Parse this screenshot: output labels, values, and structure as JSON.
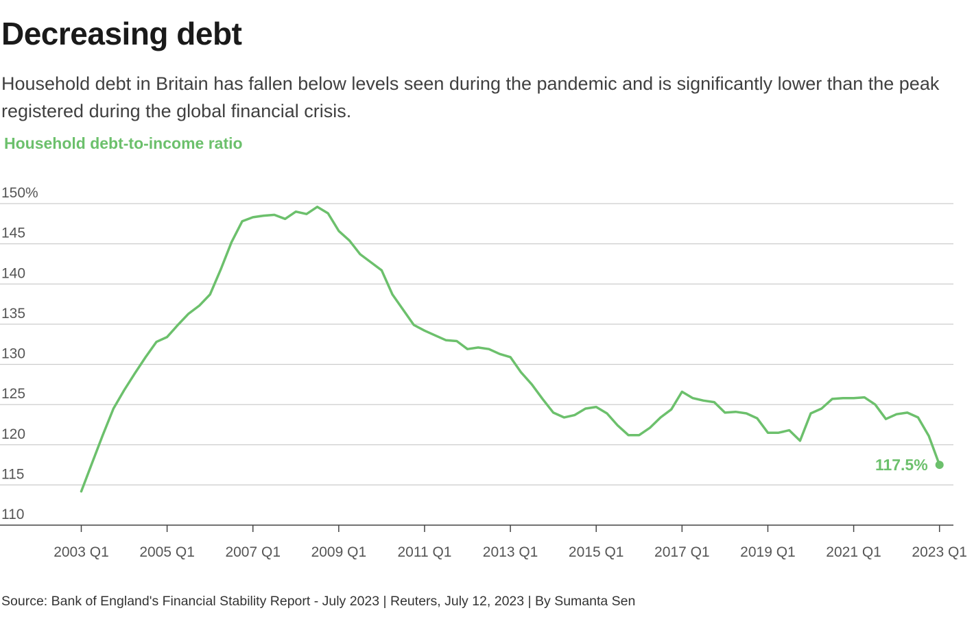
{
  "header": {
    "title": "Decreasing debt",
    "subtitle": "Household debt in Britain has fallen below levels seen during the pandemic and is significantly lower than the peak registered during the global financial crisis."
  },
  "chart_label": "Household debt-to-income ratio",
  "footer": {
    "source": "Source: Bank of England's Financial Stability Report - July 2023 | Reuters, July 12, 2023 | By Sumanta Sen"
  },
  "colors": {
    "line": "#6cc06c",
    "grid": "#cccccc",
    "axis": "#444444"
  },
  "chart_data": {
    "type": "line",
    "title": "Household debt-to-income ratio",
    "xlabel": "",
    "ylabel": "",
    "ylim": [
      110,
      150
    ],
    "y_ticks": [
      {
        "value": 150,
        "label": "150%"
      },
      {
        "value": 145,
        "label": "145"
      },
      {
        "value": 140,
        "label": "140"
      },
      {
        "value": 135,
        "label": "135"
      },
      {
        "value": 130,
        "label": "130"
      },
      {
        "value": 125,
        "label": "125"
      },
      {
        "value": 120,
        "label": "120"
      },
      {
        "value": 115,
        "label": "115"
      },
      {
        "value": 110,
        "label": "110"
      }
    ],
    "x_ticks": [
      {
        "index": 0,
        "label": "2003 Q1"
      },
      {
        "index": 8,
        "label": "2005 Q1"
      },
      {
        "index": 16,
        "label": "2007 Q1"
      },
      {
        "index": 24,
        "label": "2009 Q1"
      },
      {
        "index": 32,
        "label": "2011 Q1"
      },
      {
        "index": 40,
        "label": "2013 Q1"
      },
      {
        "index": 48,
        "label": "2015 Q1"
      },
      {
        "index": 56,
        "label": "2017 Q1"
      },
      {
        "index": 64,
        "label": "2019 Q1"
      },
      {
        "index": 72,
        "label": "2021 Q1"
      },
      {
        "index": 80,
        "label": "2023 Q1"
      }
    ],
    "grid": true,
    "series": [
      {
        "name": "Household debt-to-income ratio",
        "start": "2003 Q1",
        "values": [
          114.2,
          117.7,
          121.2,
          124.5,
          126.8,
          128.9,
          130.9,
          132.8,
          133.4,
          134.9,
          136.3,
          137.3,
          138.7,
          141.8,
          145.2,
          147.8,
          148.3,
          148.5,
          148.6,
          148.1,
          149.0,
          148.7,
          149.6,
          148.8,
          146.6,
          145.4,
          143.7,
          142.7,
          141.7,
          138.7,
          136.8,
          134.9,
          134.2,
          133.6,
          133.0,
          132.9,
          131.9,
          132.1,
          131.9,
          131.3,
          130.9,
          129.0,
          127.5,
          125.7,
          124.0,
          123.4,
          123.7,
          124.5,
          124.7,
          123.9,
          122.4,
          121.2,
          121.2,
          122.1,
          123.4,
          124.4,
          126.6,
          125.8,
          125.5,
          125.3,
          124.0,
          124.1,
          123.9,
          123.3,
          121.5,
          121.5,
          121.8,
          120.5,
          123.9,
          124.5,
          125.7,
          125.8,
          125.8,
          125.9,
          125.0,
          123.2,
          123.8,
          124.0,
          123.4,
          121.1,
          117.5
        ]
      }
    ],
    "end_label": "117.5%"
  }
}
